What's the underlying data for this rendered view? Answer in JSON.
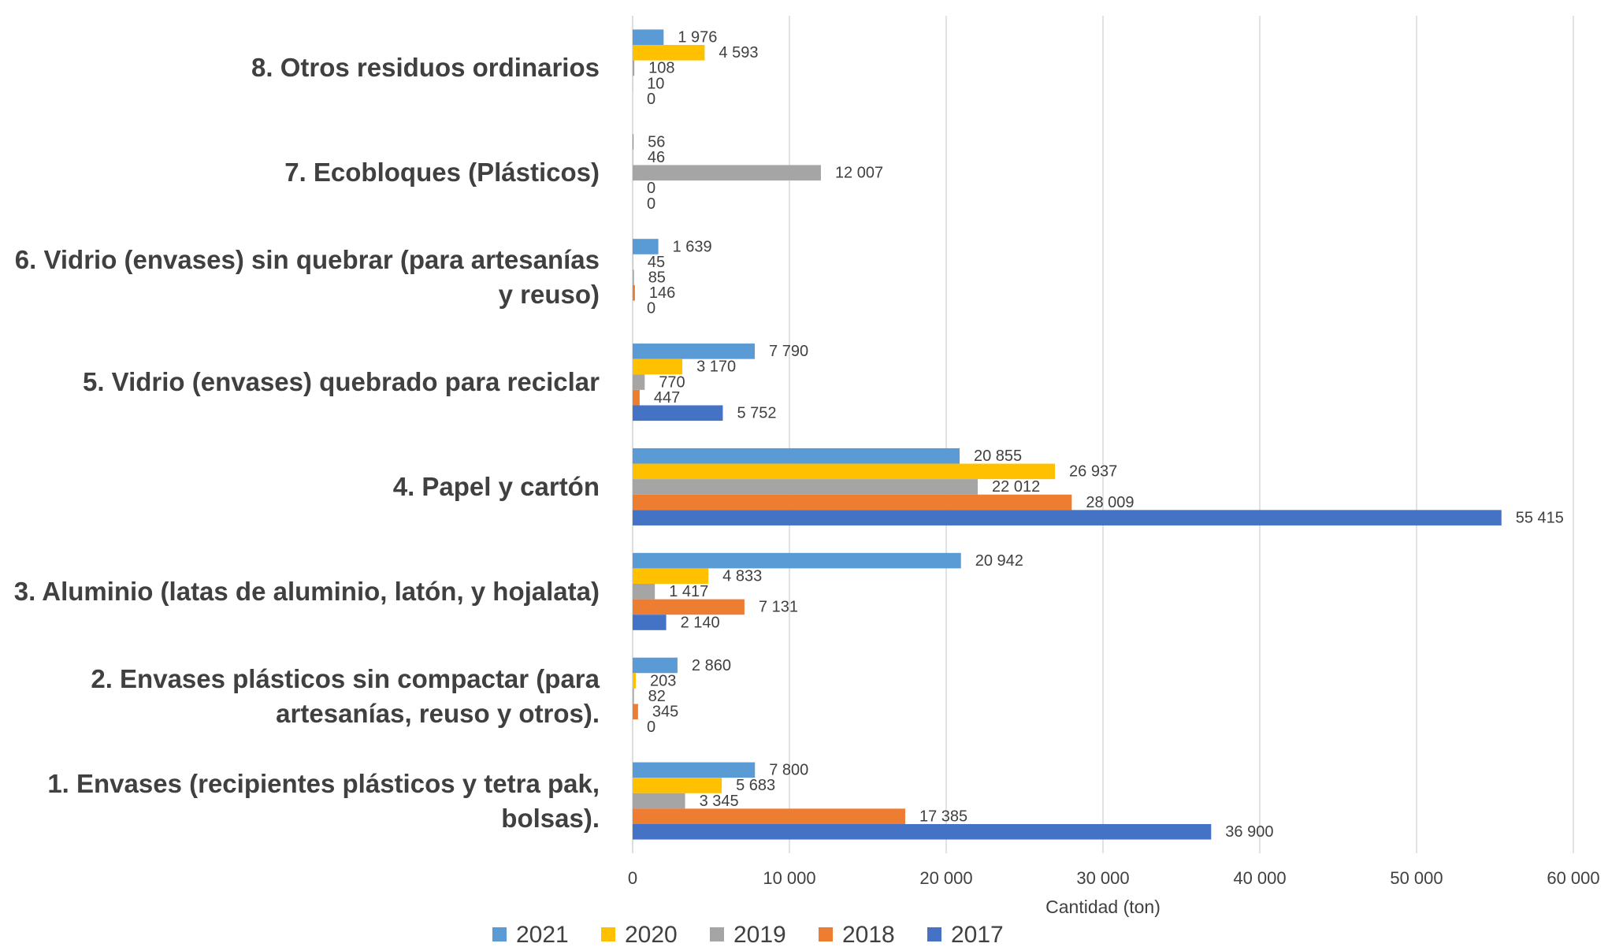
{
  "chart_data": {
    "type": "bar",
    "orientation": "horizontal",
    "categories": [
      "1. Envases (recipientes plásticos y tetra pak, bolsas).",
      "2. Envases plásticos sin compactar (para artesanías, reuso y otros).",
      "3. Aluminio (latas de aluminio, latón, y hojalata)",
      "4. Papel y cartón",
      "5. Vidrio (envases) quebrado para reciclar",
      "6. Vidrio (envases) sin quebrar (para artesanías y reuso)",
      "7. Ecobloques (Plásticos)",
      "8. Otros residuos ordinarios"
    ],
    "series": [
      {
        "name": "2021",
        "color": "#5b9bd5",
        "values": [
          7800,
          2860,
          20942,
          20855,
          7790,
          1639,
          56,
          1976
        ],
        "value_labels": [
          "7 800",
          "2 860",
          "20 942",
          "20 855",
          "7 790",
          "1 639",
          "56",
          "1 976"
        ]
      },
      {
        "name": "2020",
        "color": "#ffc000",
        "values": [
          5683,
          203,
          4833,
          26937,
          3170,
          45,
          46,
          4593
        ],
        "value_labels": [
          "5 683",
          "203",
          "4 833",
          "26 937",
          "3 170",
          "45",
          "46",
          "4 593"
        ]
      },
      {
        "name": "2019",
        "color": "#a5a5a5",
        "values": [
          3345,
          82,
          1417,
          22012,
          770,
          85,
          12007,
          108
        ],
        "value_labels": [
          "3 345",
          "82",
          "1 417",
          "22 012",
          "770",
          "85",
          "12 007",
          "108"
        ]
      },
      {
        "name": "2018",
        "color": "#ed7d31",
        "values": [
          17385,
          345,
          7131,
          28009,
          447,
          146,
          0,
          10
        ],
        "value_labels": [
          "17 385",
          "345",
          "7 131",
          "28 009",
          "447",
          "146",
          "0",
          "10"
        ]
      },
      {
        "name": "2017",
        "color": "#4472c4",
        "values": [
          36900,
          0,
          2140,
          55415,
          5752,
          0,
          0,
          0
        ],
        "value_labels": [
          "36 900",
          "0",
          "2 140",
          "55 415",
          "5 752",
          "0",
          "0",
          "0"
        ]
      }
    ],
    "xlabel": "Cantidad (ton)",
    "xlim": [
      0,
      60000
    ],
    "xticks": [
      0,
      {
        "value": 10000,
        "label": "10 000"
      },
      {
        "value": 20000,
        "label": "20 000"
      },
      {
        "value": 30000,
        "label": "30 000"
      },
      {
        "value": 40000,
        "label": "40 000"
      },
      {
        "value": 50000,
        "label": "50 000"
      },
      {
        "value": 60000,
        "label": "60 000"
      }
    ],
    "grid": true,
    "legend": "bottom"
  }
}
